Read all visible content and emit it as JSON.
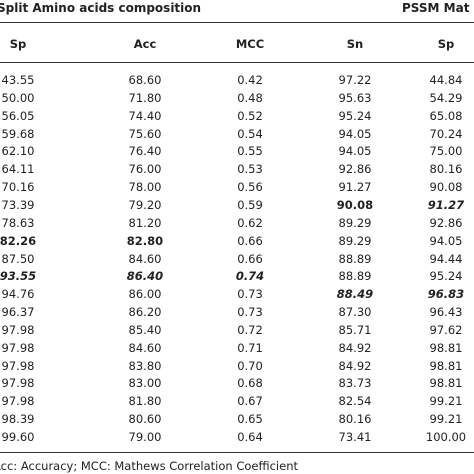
{
  "header": {
    "group_left": "Split Amino acids composition",
    "group_right": "PSSM Mat"
  },
  "table": {
    "columns": [
      "Sp",
      "Acc",
      "MCC",
      "Sn",
      "Sp"
    ],
    "rows": [
      [
        "43.55",
        "68.60",
        "0.42",
        "97.22",
        "44.84"
      ],
      [
        "50.00",
        "71.80",
        "0.48",
        "95.63",
        "54.29"
      ],
      [
        "56.05",
        "74.40",
        "0.52",
        "95.24",
        "65.08"
      ],
      [
        "59.68",
        "75.60",
        "0.54",
        "94.05",
        "70.24"
      ],
      [
        "62.10",
        "76.40",
        "0.55",
        "94.05",
        "75.00"
      ],
      [
        "64.11",
        "76.00",
        "0.53",
        "92.86",
        "80.16"
      ],
      [
        "70.16",
        "78.00",
        "0.56",
        "91.27",
        "90.08"
      ],
      [
        "73.39",
        "79.20",
        "0.59",
        "90.08",
        "91.27"
      ],
      [
        "78.63",
        "81.20",
        "0.62",
        "89.29",
        "92.86"
      ],
      [
        "82.26",
        "82.80",
        "0.66",
        "89.29",
        "94.05"
      ],
      [
        "87.50",
        "84.60",
        "0.66",
        "88.89",
        "94.44"
      ],
      [
        "93.55",
        "86.40",
        "0.74",
        "88.89",
        "95.24"
      ],
      [
        "94.76",
        "86.00",
        "0.73",
        "88.49",
        "96.83"
      ],
      [
        "96.37",
        "86.20",
        "0.73",
        "87.30",
        "96.43"
      ],
      [
        "97.98",
        "85.40",
        "0.72",
        "85.71",
        "97.62"
      ],
      [
        "97.98",
        "84.60",
        "0.71",
        "84.92",
        "98.81"
      ],
      [
        "97.98",
        "83.80",
        "0.70",
        "84.92",
        "98.81"
      ],
      [
        "97.98",
        "83.00",
        "0.68",
        "83.73",
        "98.81"
      ],
      [
        "97.98",
        "81.80",
        "0.67",
        "82.54",
        "99.21"
      ],
      [
        "98.39",
        "80.60",
        "0.65",
        "80.16",
        "99.21"
      ],
      [
        "99.60",
        "79.00",
        "0.64",
        "73.41",
        "100.00"
      ]
    ]
  },
  "footnote": "Acc: Accuracy; MCC: Mathews Correlation Coefficient"
}
